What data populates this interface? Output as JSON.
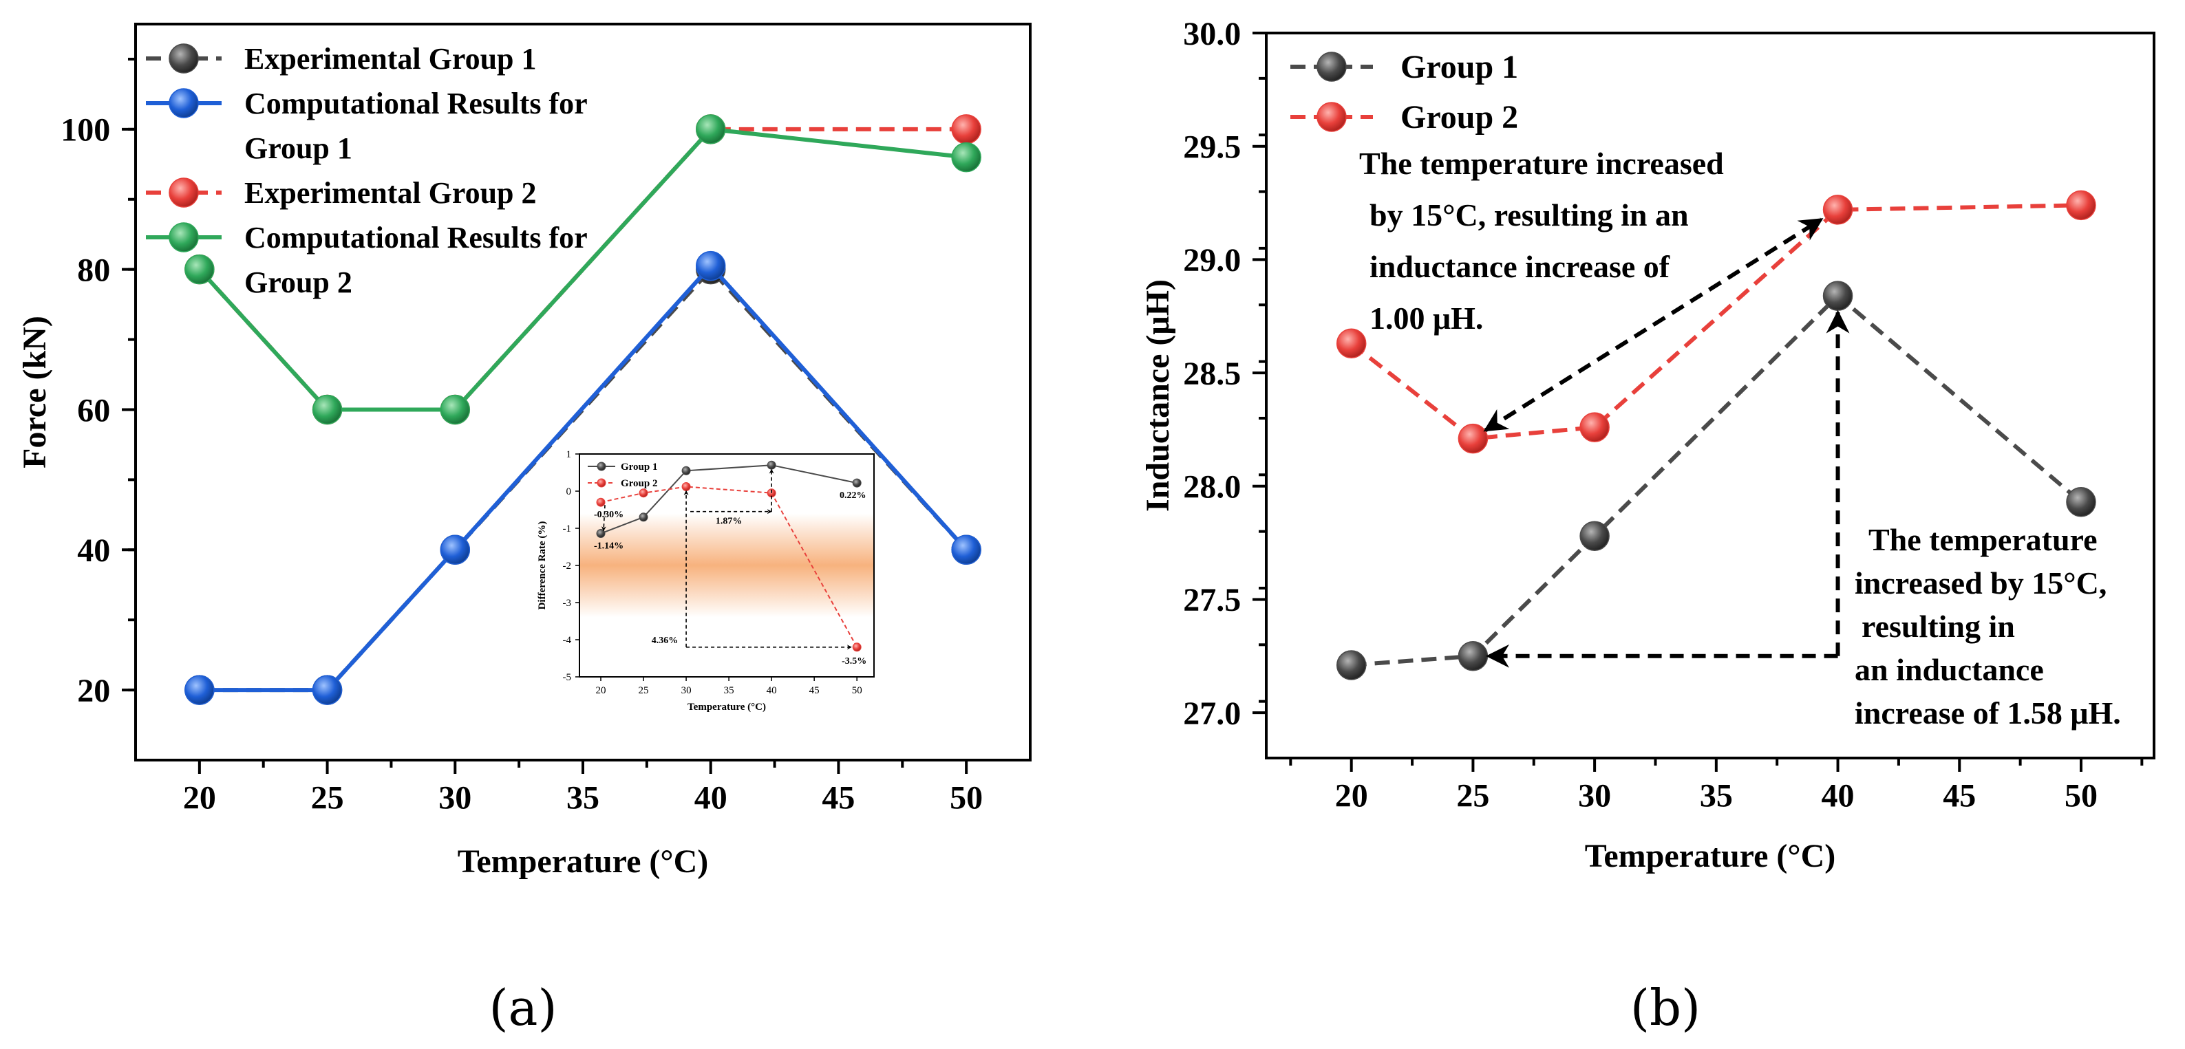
{
  "chart_data": [
    {
      "id": "a",
      "type": "line",
      "panel_label": "(a)",
      "xlabel": "Temperature (°C)",
      "ylabel": "Force (kN)",
      "xlim": [
        17.5,
        52.5
      ],
      "ylim": [
        10,
        115
      ],
      "xticks": [
        20,
        25,
        30,
        35,
        40,
        45,
        50
      ],
      "yticks": [
        20,
        40,
        60,
        80,
        100
      ],
      "x": [
        20,
        25,
        30,
        40,
        50
      ],
      "series": [
        {
          "name": "Experimental Group 1",
          "legend_lines": [
            "Experimental Group 1"
          ],
          "values": [
            20,
            20,
            40,
            80,
            40
          ],
          "color": "#4a4a4a",
          "dash": true
        },
        {
          "name": "Computational Results for Group 1",
          "legend_lines": [
            "Computational Results for",
            "Group 1"
          ],
          "values": [
            20,
            20,
            40,
            80.5,
            40
          ],
          "color": "#1f5fd6",
          "dash": false
        },
        {
          "name": "Experimental Group 2",
          "legend_lines": [
            "Experimental Group 2"
          ],
          "values": [
            80,
            60,
            60,
            100,
            100
          ],
          "color": "#e8403b",
          "dash": true
        },
        {
          "name": "Computational Results for Group 2",
          "legend_lines": [
            "Computational Results for",
            "Group 2"
          ],
          "values": [
            80,
            60,
            60,
            100,
            96
          ],
          "color": "#2fa85a",
          "dash": false
        }
      ],
      "inset": {
        "xlabel": "Temperature (°C)",
        "ylabel": "Difference Rate (%)",
        "xlim": [
          17.5,
          52
        ],
        "ylim": [
          -5,
          1
        ],
        "xticks": [
          20,
          25,
          30,
          35,
          40,
          45,
          50
        ],
        "yticks": [
          1,
          0,
          -1,
          -2,
          -3,
          -4,
          -5
        ],
        "x": [
          20,
          25,
          30,
          40,
          50
        ],
        "series": [
          {
            "name": "Group 1",
            "values": [
              -1.14,
              -0.7,
              0.55,
              0.7,
              0.22
            ],
            "color": "#4a4a4a"
          },
          {
            "name": "Group 2",
            "values": [
              -0.3,
              -0.05,
              0.12,
              -0.05,
              -4.2
            ],
            "color": "#e8403b"
          }
        ],
        "annotations": [
          "-0.30%",
          "-1.14%",
          "1.87%",
          "0.22%",
          "4.36%",
          "-3.5%"
        ]
      }
    },
    {
      "id": "b",
      "type": "line",
      "panel_label": "(b)",
      "xlabel": "Temperature (°C)",
      "ylabel": "Inductance  (μH)",
      "xlim": [
        16.5,
        53
      ],
      "ylim": [
        26.8,
        30.0
      ],
      "xticks": [
        20,
        25,
        30,
        35,
        40,
        45,
        50
      ],
      "yticks": [
        27.0,
        27.5,
        28.0,
        28.5,
        29.0,
        29.5,
        30.0
      ],
      "x": [
        20,
        25,
        30,
        40,
        50
      ],
      "series": [
        {
          "name": "Group 1",
          "values": [
            27.21,
            27.25,
            27.78,
            28.84,
            27.93
          ],
          "color": "#4a4a4a",
          "dash": true
        },
        {
          "name": "Group 2",
          "values": [
            28.63,
            28.21,
            28.26,
            29.22,
            29.24
          ],
          "color": "#e8403b",
          "dash": true
        }
      ],
      "annotations": [
        {
          "lines": [
            "The temperature increased",
            "by 15°C, resulting in an",
            "inductance increase of",
            "1.00  μH."
          ]
        },
        {
          "lines": [
            "The temperature",
            "increased by 15°C,",
            "resulting in",
            "an inductance",
            "increase of 1.58  μH."
          ]
        }
      ]
    }
  ]
}
